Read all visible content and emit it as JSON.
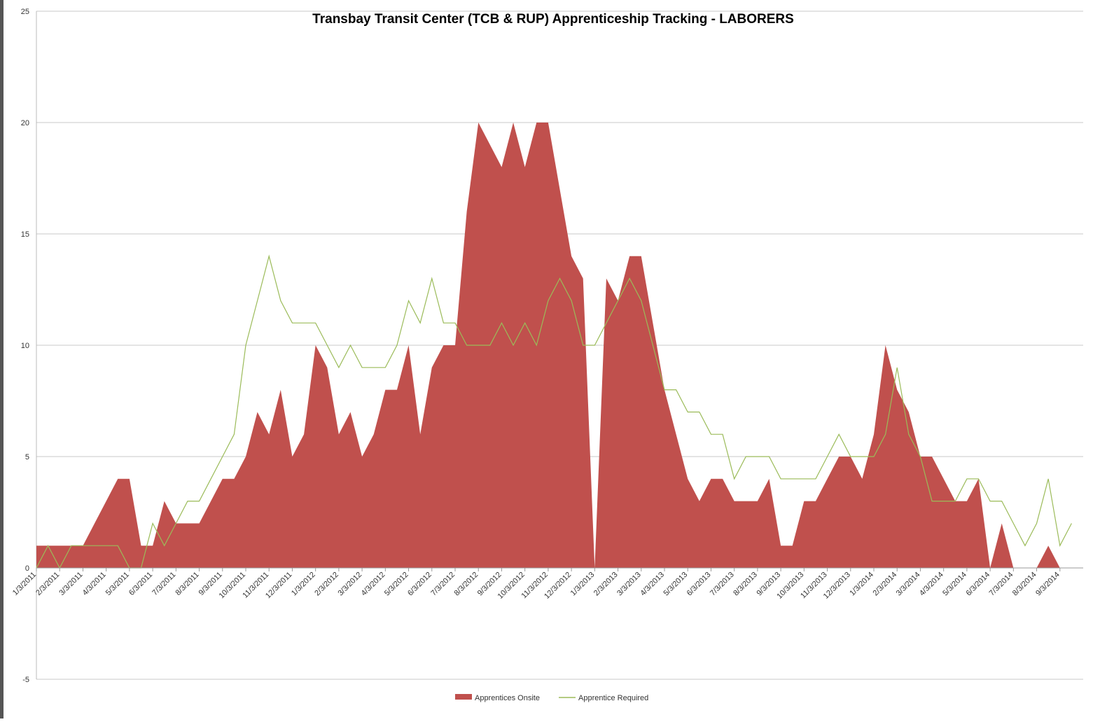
{
  "chart_data": {
    "type": "area-line",
    "title": "Transbay Transit Center (TCB & RUP) Apprenticeship Tracking - LABORERS",
    "categories": [
      "1/3/2011",
      null,
      "2/3/2011",
      null,
      "3/3/2011",
      null,
      "4/3/2011",
      null,
      "5/3/2011",
      null,
      "6/3/2011",
      null,
      "7/3/2011",
      null,
      "8/3/2011",
      null,
      "9/3/2011",
      null,
      "10/3/2011",
      null,
      "11/3/2011",
      null,
      "12/3/2011",
      null,
      "1/3/2012",
      null,
      "2/3/2012",
      null,
      "3/3/2012",
      null,
      "4/3/2012",
      null,
      "5/3/2012",
      null,
      "6/3/2012",
      null,
      "7/3/2012",
      null,
      "8/3/2012",
      null,
      "9/3/2012",
      null,
      "10/3/2012",
      null,
      "11/3/2012",
      null,
      "12/3/2012",
      null,
      "1/3/2013",
      null,
      "2/3/2013",
      null,
      "3/3/2013",
      null,
      "4/3/2013",
      null,
      "5/3/2013",
      null,
      "6/3/2013",
      null,
      "7/3/2013",
      null,
      "8/3/2013",
      null,
      "9/3/2013",
      null,
      "10/3/2013",
      null,
      "11/3/2013",
      null,
      "12/3/2013",
      null,
      "1/3/2014",
      null,
      "2/3/2014",
      null,
      "3/3/2014",
      null,
      "4/3/2014",
      null,
      "5/3/2014",
      null,
      "6/3/2014",
      null,
      "7/3/2014",
      null,
      "8/3/2014",
      null,
      "9/3/2014",
      null
    ],
    "series": [
      {
        "name": "Apprentices Onsite",
        "color": "#c0504d",
        "kind": "area",
        "values": [
          1,
          1,
          1,
          1,
          1,
          2,
          3,
          4,
          4,
          1,
          1,
          3,
          2,
          2,
          2,
          3,
          4,
          4,
          5,
          7,
          6,
          8,
          5,
          6,
          10,
          9,
          6,
          7,
          5,
          6,
          8,
          8,
          10,
          6,
          9,
          10,
          10,
          16,
          20,
          19,
          18,
          20,
          18,
          20,
          20,
          17,
          14,
          13,
          0,
          13,
          12,
          14,
          14,
          11,
          8,
          6,
          4,
          3,
          4,
          4,
          3,
          3,
          3,
          4,
          1,
          1,
          3,
          3,
          4,
          5,
          5,
          4,
          6,
          10,
          8,
          7,
          5,
          5,
          4,
          3,
          3,
          4,
          0,
          2,
          0,
          0,
          0,
          1,
          0,
          0
        ]
      },
      {
        "name": "Apprentice Required",
        "color": "#9bbb59",
        "kind": "line",
        "values": [
          0,
          1,
          0,
          1,
          1,
          1,
          1,
          1,
          0,
          0,
          2,
          1,
          2,
          3,
          3,
          4,
          5,
          6,
          10,
          12,
          14,
          12,
          11,
          11,
          11,
          10,
          9,
          10,
          9,
          9,
          9,
          10,
          12,
          11,
          13,
          11,
          11,
          10,
          10,
          10,
          11,
          10,
          11,
          10,
          12,
          13,
          12,
          10,
          10,
          11,
          12,
          13,
          12,
          10,
          8,
          8,
          7,
          7,
          6,
          6,
          4,
          5,
          5,
          5,
          4,
          4,
          4,
          4,
          5,
          6,
          5,
          5,
          5,
          6,
          9,
          6,
          5,
          3,
          3,
          3,
          4,
          4,
          3,
          3,
          2,
          1,
          2,
          4,
          1,
          2
        ]
      }
    ],
    "ylim": [
      -5,
      25
    ],
    "yticks": [
      -5,
      0,
      5,
      10,
      15,
      20,
      25
    ],
    "grid": true,
    "legend": "bottom"
  }
}
